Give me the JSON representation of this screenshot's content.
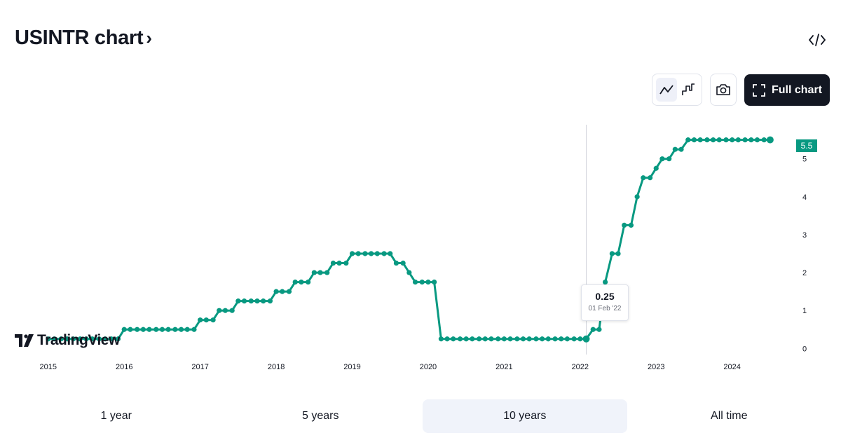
{
  "header": {
    "title": "USINTR chart",
    "chevron": "›"
  },
  "toolbar": {
    "full_chart_label": "Full chart",
    "line_style_active": "line"
  },
  "tooltip": {
    "value": "0.25",
    "date": "01 Feb '22"
  },
  "last_value_label": "5.5",
  "watermark": "TradingView",
  "ranges": {
    "items": [
      "1 year",
      "5 years",
      "10 years",
      "All time"
    ],
    "active": "10 years"
  },
  "colors": {
    "line": "#089981",
    "text": "#131722",
    "axis_text": "#131722"
  },
  "chart_data": {
    "type": "line",
    "title": "",
    "xlabel": "",
    "ylabel": "",
    "x_ticks": [
      "2015",
      "2016",
      "2017",
      "2018",
      "2019",
      "2020",
      "2021",
      "2022",
      "2023",
      "2024"
    ],
    "y_ticks": [
      "0",
      "1",
      "2",
      "3",
      "4",
      "5"
    ],
    "ylim": [
      -0.05,
      5.9
    ],
    "xlim": [
      2014.55,
      2024.75
    ],
    "grid": false,
    "crosshair_x": 2022.08,
    "series": [
      {
        "x": [
          2015.0,
          2015.08,
          2015.17,
          2015.25,
          2015.33,
          2015.42,
          2015.5,
          2015.58,
          2015.67,
          2015.75,
          2015.83,
          2015.92,
          2016.0,
          2016.08,
          2016.17,
          2016.25,
          2016.33,
          2016.42,
          2016.5,
          2016.58,
          2016.67,
          2016.75,
          2016.83,
          2016.92,
          2017.0,
          2017.08,
          2017.17,
          2017.25,
          2017.33,
          2017.42,
          2017.5,
          2017.58,
          2017.67,
          2017.75,
          2017.83,
          2017.92,
          2018.0,
          2018.08,
          2018.17,
          2018.25,
          2018.33,
          2018.42,
          2018.5,
          2018.58,
          2018.67,
          2018.75,
          2018.83,
          2018.92,
          2019.0,
          2019.08,
          2019.17,
          2019.25,
          2019.33,
          2019.42,
          2019.5,
          2019.58,
          2019.67,
          2019.75,
          2019.83,
          2019.92,
          2020.0,
          2020.08,
          2020.17,
          2020.25,
          2020.33,
          2020.42,
          2020.5,
          2020.58,
          2020.67,
          2020.75,
          2020.83,
          2020.92,
          2021.0,
          2021.08,
          2021.17,
          2021.25,
          2021.33,
          2021.42,
          2021.5,
          2021.58,
          2021.67,
          2021.75,
          2021.83,
          2021.92,
          2022.0,
          2022.08,
          2022.17,
          2022.25,
          2022.33,
          2022.42,
          2022.5,
          2022.58,
          2022.67,
          2022.75,
          2022.83,
          2022.92,
          2023.0,
          2023.08,
          2023.17,
          2023.25,
          2023.33,
          2023.42,
          2023.5,
          2023.58,
          2023.67,
          2023.75,
          2023.83,
          2023.92,
          2024.0,
          2024.08,
          2024.17,
          2024.25,
          2024.33,
          2024.42,
          2024.5
        ],
        "y": [
          0.25,
          0.25,
          0.25,
          0.25,
          0.25,
          0.25,
          0.25,
          0.25,
          0.25,
          0.25,
          0.25,
          0.25,
          0.5,
          0.5,
          0.5,
          0.5,
          0.5,
          0.5,
          0.5,
          0.5,
          0.5,
          0.5,
          0.5,
          0.5,
          0.75,
          0.75,
          0.75,
          1.0,
          1.0,
          1.0,
          1.25,
          1.25,
          1.25,
          1.25,
          1.25,
          1.25,
          1.5,
          1.5,
          1.5,
          1.75,
          1.75,
          1.75,
          2.0,
          2.0,
          2.0,
          2.25,
          2.25,
          2.25,
          2.5,
          2.5,
          2.5,
          2.5,
          2.5,
          2.5,
          2.5,
          2.25,
          2.25,
          2.0,
          1.75,
          1.75,
          1.75,
          1.75,
          0.25,
          0.25,
          0.25,
          0.25,
          0.25,
          0.25,
          0.25,
          0.25,
          0.25,
          0.25,
          0.25,
          0.25,
          0.25,
          0.25,
          0.25,
          0.25,
          0.25,
          0.25,
          0.25,
          0.25,
          0.25,
          0.25,
          0.25,
          0.25,
          0.5,
          0.5,
          1.75,
          2.5,
          2.5,
          3.25,
          3.25,
          4.0,
          4.5,
          4.5,
          4.75,
          5.0,
          5.0,
          5.25,
          5.25,
          5.5,
          5.5,
          5.5,
          5.5,
          5.5,
          5.5,
          5.5,
          5.5,
          5.5,
          5.5,
          5.5,
          5.5,
          5.5,
          5.5
        ]
      }
    ]
  }
}
